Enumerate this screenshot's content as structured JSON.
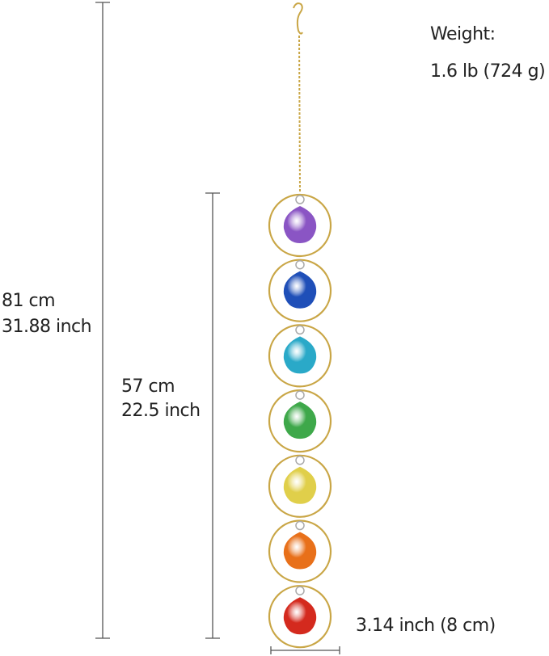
{
  "weight": {
    "label": "Weight:",
    "value": "1.6 lb (724 g)"
  },
  "dimensions": {
    "total_length": {
      "cm": "81 cm",
      "inch": "31.88 inch"
    },
    "ring_section_length": {
      "cm": "57 cm",
      "inch": "22.5 inch"
    },
    "width": "3.14 inch (8 cm)"
  },
  "product": {
    "gems": [
      {
        "name": "purple",
        "color": "#8a55c4"
      },
      {
        "name": "blue",
        "color": "#1f4fb8"
      },
      {
        "name": "teal",
        "color": "#2aa9c8"
      },
      {
        "name": "green",
        "color": "#3ea84a"
      },
      {
        "name": "yellow",
        "color": "#e0cf4a"
      },
      {
        "name": "orange",
        "color": "#e8701a"
      },
      {
        "name": "red",
        "color": "#d42a1e"
      }
    ],
    "metal_color": "#c9a646",
    "line_color": "#555555"
  }
}
